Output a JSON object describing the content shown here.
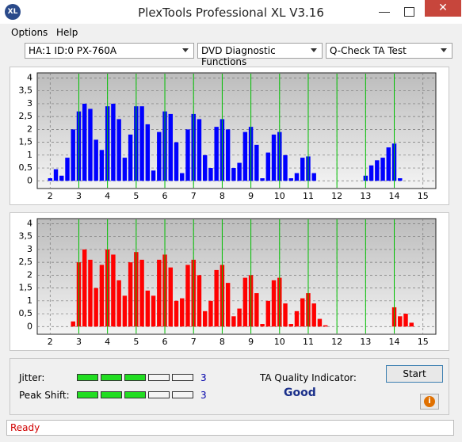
{
  "window": {
    "title": "PlexTools Professional XL V3.16",
    "menu": [
      "Options",
      "Help"
    ],
    "selects": [
      "HA:1 ID:0  PX-760A",
      "DVD Diagnostic Functions",
      "Q-Check TA Test"
    ],
    "jitter": {
      "label": "Jitter:",
      "value": 3
    },
    "peak_shift": {
      "label": "Peak Shift:",
      "value": 3
    },
    "ta_quality": {
      "label": "TA Quality Indicator:",
      "value": "Good"
    },
    "button": "Start",
    "status": "Ready"
  },
  "chart_data": [
    {
      "type": "bar",
      "color": "#0000ff",
      "grid": true,
      "x": [
        1.8,
        2.0,
        2.2,
        2.4,
        2.6,
        2.8,
        3.0,
        3.2,
        3.4,
        3.6,
        3.8,
        4.0,
        4.2,
        4.4,
        4.6,
        4.8,
        5.0,
        5.2,
        5.4,
        5.6,
        5.8,
        6.0,
        6.2,
        6.4,
        6.6,
        6.8,
        7.0,
        7.2,
        7.4,
        7.6,
        7.8,
        8.0,
        8.2,
        8.4,
        8.6,
        8.8,
        9.0,
        9.2,
        9.4,
        9.6,
        9.8,
        10.0,
        10.2,
        10.4,
        10.6,
        10.8,
        11.0,
        11.2,
        11.4,
        11.6,
        11.8,
        12.0,
        12.2,
        12.4,
        12.6,
        12.8,
        13.0,
        13.2,
        13.4,
        13.6,
        13.8,
        14.0,
        14.2,
        14.4,
        14.6
      ],
      "values": [
        0,
        0.1,
        0.45,
        0.2,
        0.9,
        2.0,
        2.7,
        3.0,
        2.8,
        1.6,
        1.2,
        2.9,
        3.0,
        2.4,
        0.9,
        1.8,
        2.9,
        2.9,
        2.2,
        0.4,
        1.9,
        2.7,
        2.6,
        1.5,
        0.3,
        2.0,
        2.6,
        2.4,
        1.0,
        0.5,
        2.1,
        2.4,
        2.0,
        0.5,
        0.7,
        1.9,
        2.1,
        1.4,
        0.1,
        1.1,
        1.8,
        1.9,
        1.0,
        0.1,
        0.3,
        0.9,
        0.95,
        0.3,
        0,
        0,
        0,
        0,
        0,
        0,
        0,
        0,
        0.2,
        0.6,
        0.8,
        0.9,
        1.3,
        1.45,
        0.1,
        0,
        0
      ],
      "reference_lines": {
        "color": "#00c000",
        "values": [
          3,
          4,
          5,
          6,
          7,
          8,
          9,
          10,
          11,
          12,
          13,
          14
        ]
      },
      "xlim": [
        1.55,
        15.45
      ],
      "xticks": [
        2,
        3,
        4,
        5,
        6,
        7,
        8,
        9,
        10,
        11,
        12,
        13,
        14,
        15
      ],
      "ylim": [
        -0.3,
        4.2
      ],
      "yticks": [
        0,
        {
          "value": 0.5,
          "label": "0,5"
        },
        1,
        {
          "value": 1.5,
          "label": "1,5"
        },
        2,
        {
          "value": 2.5,
          "label": "2,5"
        },
        3,
        {
          "value": 3.5,
          "label": "3,5"
        },
        4
      ]
    },
    {
      "type": "bar",
      "color": "#ff0000",
      "grid": true,
      "x": [
        1.8,
        2.0,
        2.2,
        2.4,
        2.6,
        2.8,
        3.0,
        3.2,
        3.4,
        3.6,
        3.8,
        4.0,
        4.2,
        4.4,
        4.6,
        4.8,
        5.0,
        5.2,
        5.4,
        5.6,
        5.8,
        6.0,
        6.2,
        6.4,
        6.6,
        6.8,
        7.0,
        7.2,
        7.4,
        7.6,
        7.8,
        8.0,
        8.2,
        8.4,
        8.6,
        8.8,
        9.0,
        9.2,
        9.4,
        9.6,
        9.8,
        10.0,
        10.2,
        10.4,
        10.6,
        10.8,
        11.0,
        11.2,
        11.4,
        11.6,
        11.8,
        12.0,
        12.2,
        12.4,
        12.6,
        12.8,
        13.0,
        13.2,
        13.4,
        13.6,
        13.8,
        14.0,
        14.2,
        14.4,
        14.6
      ],
      "values": [
        0,
        0,
        0,
        0,
        0,
        0.2,
        2.5,
        3.0,
        2.6,
        1.5,
        2.4,
        3.0,
        2.8,
        1.8,
        1.2,
        2.5,
        2.9,
        2.6,
        1.4,
        1.2,
        2.6,
        2.8,
        2.3,
        1.0,
        1.1,
        2.4,
        2.6,
        2.0,
        0.6,
        1.0,
        2.2,
        2.4,
        1.7,
        0.4,
        0.7,
        1.9,
        2.0,
        1.3,
        0.1,
        1.0,
        1.8,
        1.9,
        0.9,
        0.1,
        0.6,
        1.1,
        1.3,
        0.9,
        0.3,
        0.05,
        0,
        0,
        0,
        0,
        0,
        0,
        0,
        0,
        0,
        0,
        0,
        0.75,
        0.4,
        0.5,
        0.15
      ],
      "reference_lines": {
        "color": "#00c000",
        "values": [
          3,
          4,
          5,
          6,
          7,
          8,
          9,
          10,
          11,
          12,
          13,
          14
        ]
      },
      "xlim": [
        1.55,
        15.45
      ],
      "xticks": [
        2,
        3,
        4,
        5,
        6,
        7,
        8,
        9,
        10,
        11,
        12,
        13,
        14,
        15
      ],
      "ylim": [
        -0.3,
        4.2
      ],
      "yticks": [
        0,
        {
          "value": 0.5,
          "label": "0,5"
        },
        1,
        {
          "value": 1.5,
          "label": "1,5"
        },
        2,
        {
          "value": 2.5,
          "label": "2,5"
        },
        3,
        {
          "value": 3.5,
          "label": "3,5"
        },
        4
      ]
    }
  ]
}
